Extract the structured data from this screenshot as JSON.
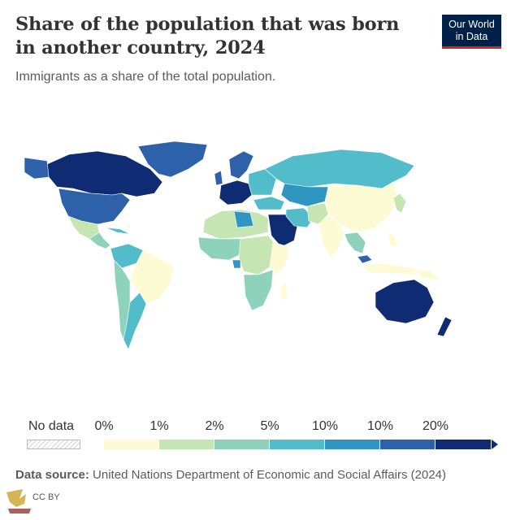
{
  "header": {
    "title": "Share of the population that was born in another country, 2024",
    "subtitle": "Immigrants as a share of the total population."
  },
  "logo": {
    "line1": "Our World",
    "line2": "in Data",
    "bg": "#002147",
    "accent": "#ce261e"
  },
  "legend": {
    "no_data_label": "No data",
    "ticks": [
      "0%",
      "1%",
      "2%",
      "5%",
      "10%",
      "10%",
      "20%"
    ],
    "colors": [
      "#fdfbd4",
      "#c5e6b2",
      "#8ed2bb",
      "#52bccb",
      "#2f95c1",
      "#2d62ab",
      "#0e2b73"
    ]
  },
  "footer": {
    "source_label": "Data source:",
    "source_text": "United Nations Department of Economic and Social Affairs (2024)"
  },
  "watermark": {
    "text": "CC BY",
    "icon": "arab-defense-forum-logo"
  }
}
